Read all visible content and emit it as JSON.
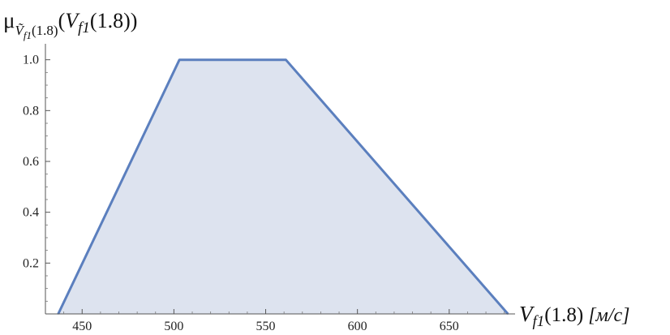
{
  "chart_data": {
    "type": "area",
    "title": "",
    "xlabel": {
      "var": "V",
      "sub": "f1",
      "arg": "(1.8)",
      "unit": "[м/с]"
    },
    "ylabel": {
      "mu": "μ",
      "sub_var": "Ṽ",
      "sub_sub": "f1",
      "sub_arg": "(1.8)",
      "paren_open": "(",
      "var": "V",
      "var_sub": "f1",
      "var_arg": "(1.8)",
      "paren_close": ")"
    },
    "x": [
      437,
      503,
      561,
      682
    ],
    "y": [
      0,
      1,
      1,
      0
    ],
    "xlim": [
      430,
      685
    ],
    "ylim": [
      0,
      1.05
    ],
    "xticks": [
      450,
      500,
      550,
      600,
      650
    ],
    "xtick_labels": [
      "450",
      "500",
      "550",
      "600",
      "650"
    ],
    "yticks": [
      0.2,
      0.4,
      0.6,
      0.8,
      1.0
    ],
    "ytick_labels": [
      "0.2",
      "0.4",
      "0.6",
      "0.8",
      "1.0"
    ],
    "grid": false,
    "line_color": "#5b7fbe",
    "fill_color": "#dde3ef"
  }
}
